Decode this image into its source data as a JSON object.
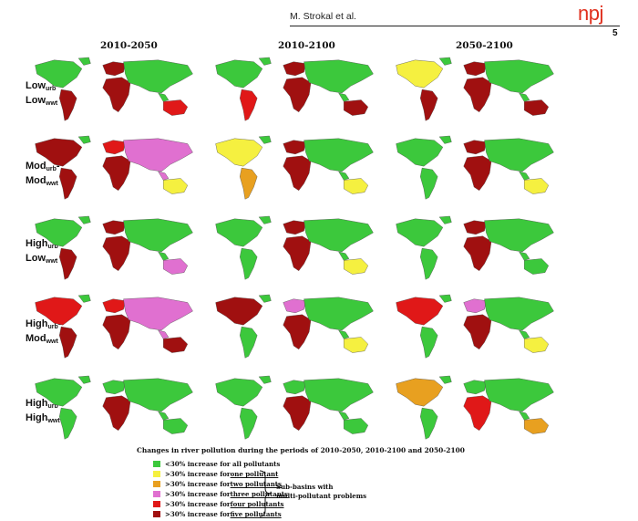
{
  "header": {
    "author": "M. Strokal et al.",
    "brand": "npj",
    "page": "5"
  },
  "columns": [
    "2010-2050",
    "2010-2100",
    "2050-2100"
  ],
  "rows": [
    {
      "line1": "Low",
      "sub1": "urb",
      "sep": "-",
      "line2": "Low",
      "sub2": "wwt"
    },
    {
      "line1": "Mod",
      "sub1": "urb",
      "sep": "-",
      "line2": "Mod",
      "sub2": "wwt"
    },
    {
      "line1": "High",
      "sub1": "urb",
      "sep": "-",
      "line2": "Low",
      "sub2": "wwt"
    },
    {
      "line1": "High",
      "sub1": "urb",
      "sep": "-",
      "line2": "Mod",
      "sub2": "wwt"
    },
    {
      "line1": "High",
      "sub1": "urb",
      "sep": "-",
      "line2": "High",
      "sub2": "wwt"
    }
  ],
  "colors": {
    "green": "#3cc83c",
    "yellow": "#f5f040",
    "orange": "#e8a020",
    "pink": "#e070d0",
    "red": "#e01818",
    "darkred": "#a01010"
  },
  "caption": "Changes in river pollution during the periods of 2010-2050, 2010-2100 and 2050-2100",
  "legend": [
    {
      "prefix": "<30% increase for all pollutants",
      "emph": "",
      "color": "#3cc83c"
    },
    {
      "prefix": ">30% increase for ",
      "emph": "one pollutant",
      "color": "#f5f040"
    },
    {
      "prefix": ">30% increase for ",
      "emph": "two pollutants",
      "color": "#e8a020"
    },
    {
      "prefix": ">30% increase for ",
      "emph": "three pollutants",
      "color": "#e070d0"
    },
    {
      "prefix": ">30% increase for ",
      "emph": "four pollutants",
      "color": "#e01818"
    },
    {
      "prefix": ">30% increase for ",
      "emph": "five pollutants",
      "color": "#a01010"
    }
  ],
  "note": {
    "line1": "Sub-basins with",
    "line2": "multi-pollutant problems"
  }
}
